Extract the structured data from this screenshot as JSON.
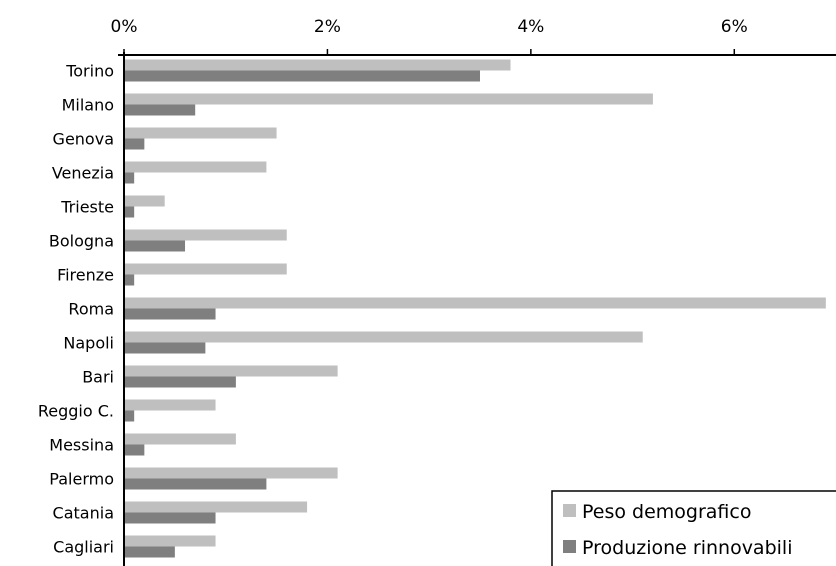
{
  "chart_data": {
    "type": "bar",
    "orientation": "horizontal",
    "x_axis_position": "top",
    "title": "",
    "xlabel": "",
    "ylabel": "",
    "categories": [
      "Torino",
      "Milano",
      "Genova",
      "Venezia",
      "Trieste",
      "Bologna",
      "Firenze",
      "Roma",
      "Napoli",
      "Bari",
      "Reggio C.",
      "Messina",
      "Palermo",
      "Catania",
      "Cagliari"
    ],
    "xlim": [
      0,
      0.07
    ],
    "xticks": [
      0,
      0.02,
      0.04,
      0.06
    ],
    "xtick_labels": [
      "0%",
      "2%",
      "4%",
      "6%"
    ],
    "grid": false,
    "legend_position": "bottom-right",
    "series": [
      {
        "name": "Peso demografico",
        "color": "#bfbfbf",
        "values": [
          0.038,
          0.052,
          0.015,
          0.014,
          0.004,
          0.016,
          0.016,
          0.069,
          0.051,
          0.021,
          0.009,
          0.011,
          0.021,
          0.018,
          0.009
        ]
      },
      {
        "name": "Produzione rinnovabili",
        "color": "#7f7f7f",
        "values": [
          0.035,
          0.007,
          0.002,
          0.001,
          0.001,
          0.006,
          0.001,
          0.009,
          0.008,
          0.011,
          0.001,
          0.002,
          0.014,
          0.009,
          0.005
        ]
      }
    ]
  }
}
